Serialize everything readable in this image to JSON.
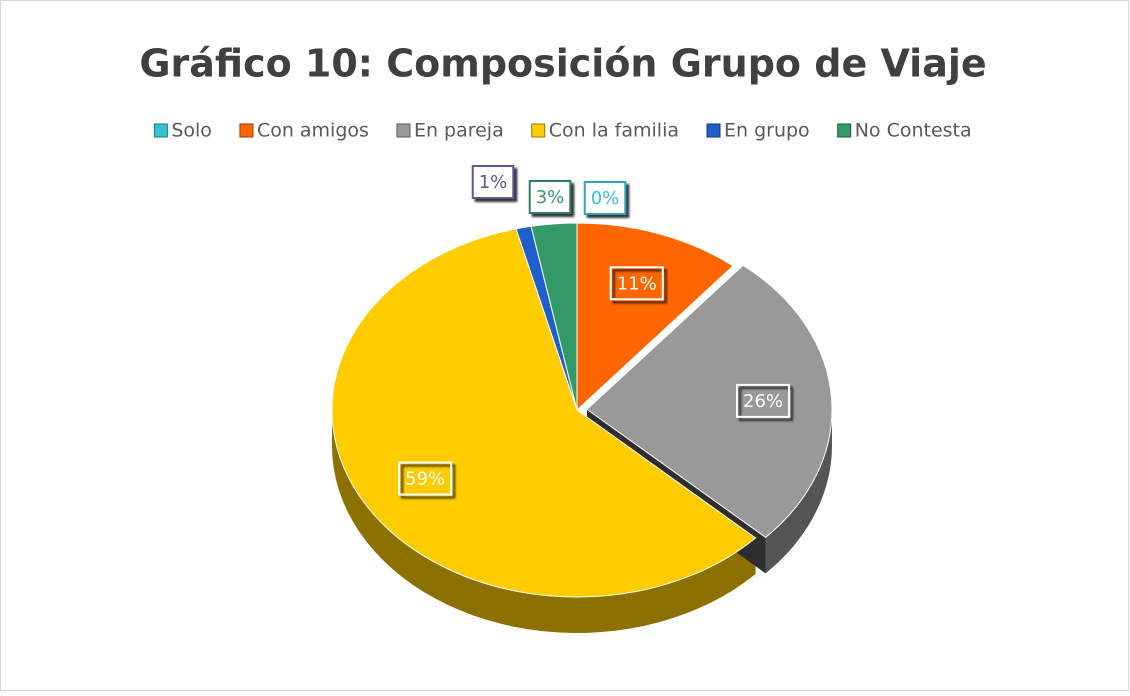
{
  "chart_data": {
    "type": "pie",
    "title": "Gráfico 10: Composición Grupo de Viaje",
    "categories": [
      "Solo",
      "Con amigos",
      "En pareja",
      "Con la familia",
      "En grupo",
      "No Contesta"
    ],
    "values": [
      0,
      11,
      26,
      59,
      1,
      3
    ],
    "value_labels": [
      "0%",
      "11%",
      "26%",
      "59%",
      "1%",
      "3%"
    ],
    "colors": [
      "#33c4d4",
      "#ff6600",
      "#999999",
      "#ffcc00",
      "#1f5fcc",
      "#339966"
    ],
    "legend": "top"
  }
}
